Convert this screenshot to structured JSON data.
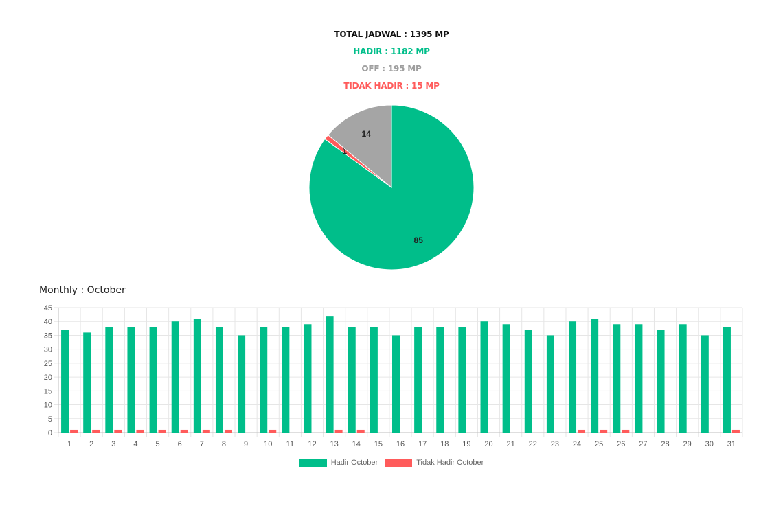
{
  "summary": {
    "total": "TOTAL JADWAL : 1395 MP",
    "hadir": "HADIR : 1182 MP",
    "off": "OFF : 195 MP",
    "tidak_hadir": "TIDAK HADIR : 15 MP"
  },
  "colors": {
    "total": "#111111",
    "hadir": "#00BE8A",
    "off": "#9E9E9E",
    "tidak_hadir": "#FF5B5B",
    "grid": "#E6E6E6",
    "axis_text": "#555555"
  },
  "monthly_title": "Monthly : October",
  "chart_data": [
    {
      "type": "pie",
      "slices": [
        {
          "label": "85",
          "value": 85,
          "color": "#00BE8A"
        },
        {
          "label": "1",
          "value": 1,
          "color": "#FF5B5B"
        },
        {
          "label": "14",
          "value": 14,
          "color": "#A5A5A5"
        }
      ]
    },
    {
      "type": "bar",
      "categories": [
        "1",
        "2",
        "3",
        "4",
        "5",
        "6",
        "7",
        "8",
        "9",
        "10",
        "11",
        "12",
        "13",
        "14",
        "15",
        "16",
        "17",
        "18",
        "19",
        "20",
        "21",
        "22",
        "23",
        "24",
        "25",
        "26",
        "27",
        "28",
        "29",
        "30",
        "31"
      ],
      "series": [
        {
          "name": "Hadir October",
          "color": "#00BE8A",
          "values": [
            37,
            36,
            38,
            38,
            38,
            40,
            41,
            38,
            35,
            38,
            38,
            39,
            42,
            38,
            38,
            35,
            38,
            38,
            38,
            40,
            39,
            37,
            35,
            40,
            41,
            39,
            39,
            37,
            39,
            35,
            38
          ]
        },
        {
          "name": "Tidak Hadir October",
          "color": "#FF5B5B",
          "values": [
            1,
            1,
            1,
            1,
            1,
            1,
            1,
            1,
            0,
            1,
            0,
            0,
            1,
            1,
            0,
            0,
            0,
            0,
            0,
            0,
            0,
            0,
            0,
            1,
            1,
            1,
            0,
            0,
            0,
            0,
            1
          ]
        }
      ],
      "ylim": [
        0,
        45
      ],
      "yticks": [
        0,
        5,
        10,
        15,
        20,
        25,
        30,
        35,
        40,
        45
      ],
      "grid": true,
      "legend_position": "bottom"
    }
  ]
}
